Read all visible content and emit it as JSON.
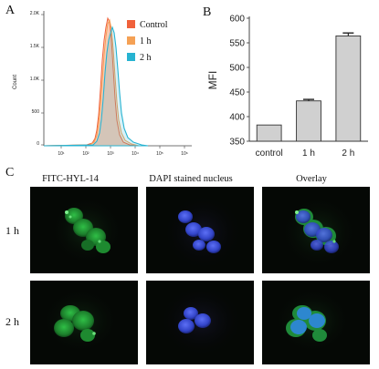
{
  "panels": {
    "a": "A",
    "b": "B",
    "c": "C"
  },
  "histogram": {
    "ylabel": "Count",
    "yticks": [
      "0",
      "500",
      "1.0K",
      "1.5K",
      "2.0K"
    ],
    "xticks": [
      "10¹",
      "10²",
      "10³",
      "10⁴",
      "10⁵",
      "10⁶"
    ],
    "legend": [
      {
        "label": "Control",
        "color": "#f0613b"
      },
      {
        "label": "1 h",
        "color": "#f5a155"
      },
      {
        "label": "2 h",
        "color": "#27b3d1"
      }
    ]
  },
  "chart_data": {
    "type": "bar",
    "categories": [
      "control",
      "1 h",
      "2 h"
    ],
    "values": [
      383,
      432,
      564
    ],
    "errors": [
      0,
      3,
      6
    ],
    "ylabel": "MFI",
    "ylim": [
      350,
      600
    ],
    "yticks": [
      350,
      400,
      450,
      500,
      550,
      600
    ],
    "bar_color": "#d0d0d0"
  },
  "microscopy": {
    "columns": [
      "FITC-HYL-14",
      "DAPI stained nucleus",
      "Overlay"
    ],
    "rows": [
      "1 h",
      "2 h"
    ]
  }
}
